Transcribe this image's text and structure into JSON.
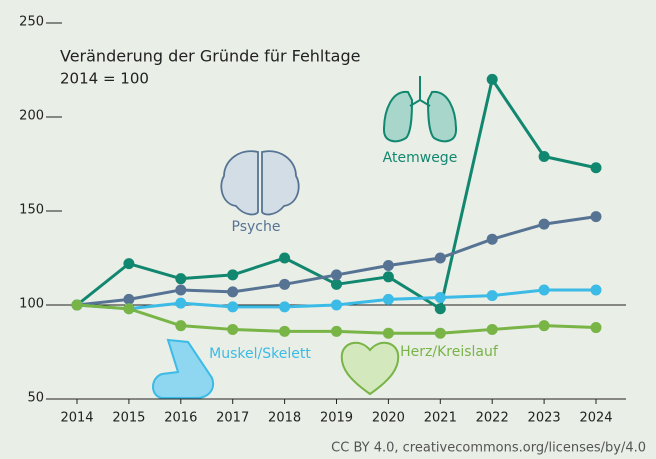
{
  "chart_data": {
    "type": "line",
    "title": "Veränderung der Gründe für Fehltage",
    "subtitle": "2014 = 100",
    "footer": "CC BY 4.0, creativecommons.org/licenses/by/4.0",
    "x": [
      2014,
      2015,
      2016,
      2017,
      2018,
      2019,
      2020,
      2021,
      2022,
      2023,
      2024
    ],
    "xlim": [
      2014,
      2024
    ],
    "xticks": [
      2014,
      2015,
      2016,
      2017,
      2018,
      2019,
      2020,
      2021,
      2022,
      2023,
      2024
    ],
    "ylim": [
      50,
      250
    ],
    "yticks": [
      50,
      100,
      150,
      200,
      250
    ],
    "series": [
      {
        "name": "Atemwege",
        "color": "#12876f",
        "values": [
          100,
          122,
          114,
          116,
          125,
          111,
          115,
          98,
          220,
          179,
          173
        ]
      },
      {
        "name": "Psyche",
        "color": "#577394",
        "values": [
          100,
          103,
          108,
          107,
          111,
          116,
          121,
          125,
          135,
          143,
          147
        ]
      },
      {
        "name": "Muskel/Skelett",
        "color": "#3bbbe6",
        "values": [
          100,
          98,
          101,
          99,
          99,
          100,
          103,
          104,
          105,
          108,
          108
        ]
      },
      {
        "name": "Herz/Kreislauf",
        "color": "#78b446",
        "values": [
          100,
          98,
          89,
          87,
          86,
          86,
          85,
          85,
          87,
          89,
          88
        ]
      }
    ]
  }
}
